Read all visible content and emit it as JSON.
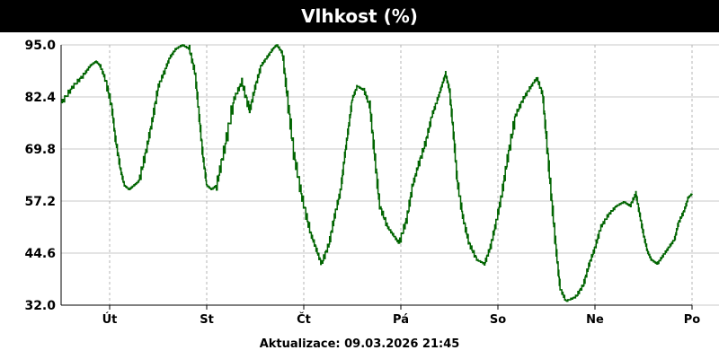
{
  "title": "Vlhkost (%)",
  "footer": {
    "label": "Aktualizace:",
    "timestamp": "09.03.2026 21:45"
  },
  "colors": {
    "line": "#006400",
    "grid_h": "#c8c8c8",
    "grid_v": "#b4b4b4",
    "axis": "#000000",
    "header_bg": "#000000",
    "header_fg": "#ffffff"
  },
  "chart_data": {
    "type": "line",
    "title": "Vlhkost (%)",
    "xlabel": "",
    "ylabel": "",
    "ylim": [
      32.0,
      95.0
    ],
    "y_ticks": [
      "95.0",
      "82.4",
      "69.8",
      "57.2",
      "44.6",
      "32.0"
    ],
    "x_range_days": [
      0,
      6.5
    ],
    "x_tick_labels": [
      "Út",
      "St",
      "Čt",
      "Pá",
      "So",
      "Ne",
      "Po"
    ],
    "x_ticks_days": [
      0.5,
      1.5,
      2.5,
      3.5,
      4.5,
      5.5,
      6.5
    ],
    "grid": true,
    "legend": "none",
    "series": [
      {
        "x_days": [
          0.0,
          0.12,
          0.24,
          0.3,
          0.36,
          0.4,
          0.45,
          0.52,
          0.56,
          0.61,
          0.65,
          0.7,
          0.75,
          0.8,
          0.88,
          0.94,
          1.0,
          1.07,
          1.12,
          1.18,
          1.25,
          1.32,
          1.38,
          1.42,
          1.46,
          1.5,
          1.55,
          1.6,
          1.68,
          1.78,
          1.86,
          1.94,
          2.0,
          2.06,
          2.12,
          2.18,
          2.22,
          2.28,
          2.33,
          2.4,
          2.48,
          2.56,
          2.62,
          2.68,
          2.76,
          2.82,
          2.88,
          2.92,
          2.96,
          3.0,
          3.05,
          3.12,
          3.18,
          3.23,
          3.28,
          3.36,
          3.42,
          3.48,
          3.56,
          3.62,
          3.68,
          3.76,
          3.82,
          3.88,
          3.92,
          3.96,
          4.0,
          4.04,
          4.08,
          4.14,
          4.2,
          4.28,
          4.36,
          4.42,
          4.48,
          4.54,
          4.6,
          4.68,
          4.76,
          4.84,
          4.9,
          4.96,
          5.0,
          5.05,
          5.1,
          5.14,
          5.2,
          5.3,
          5.38,
          5.44,
          5.5,
          5.56,
          5.64,
          5.72,
          5.8,
          5.86,
          5.92,
          5.96,
          6.0,
          6.04,
          6.08,
          6.14,
          6.2,
          6.26,
          6.32,
          6.36,
          6.42,
          6.46,
          6.5
        ],
        "values": [
          81,
          85,
          88,
          90,
          91,
          90,
          87,
          80,
          72,
          65,
          61,
          60,
          61,
          62,
          70,
          77,
          85,
          89,
          92,
          94,
          95,
          94,
          88,
          78,
          68,
          61,
          60,
          61,
          70,
          82,
          86,
          79,
          85,
          90,
          92,
          94,
          95,
          93,
          82,
          68,
          58,
          50,
          46,
          42,
          47,
          54,
          60,
          68,
          75,
          82,
          85,
          84,
          80,
          68,
          56,
          51,
          49,
          47,
          53,
          61,
          66,
          72,
          78,
          82,
          85,
          88,
          84,
          74,
          62,
          53,
          47,
          43,
          42,
          46,
          52,
          59,
          68,
          78,
          82,
          85,
          87,
          83,
          72,
          58,
          45,
          36,
          33,
          34,
          37,
          42,
          46,
          51,
          54,
          56,
          57,
          56,
          59,
          54,
          49,
          45,
          43,
          42,
          44,
          46,
          48,
          52,
          55,
          58,
          59
        ]
      }
    ]
  }
}
